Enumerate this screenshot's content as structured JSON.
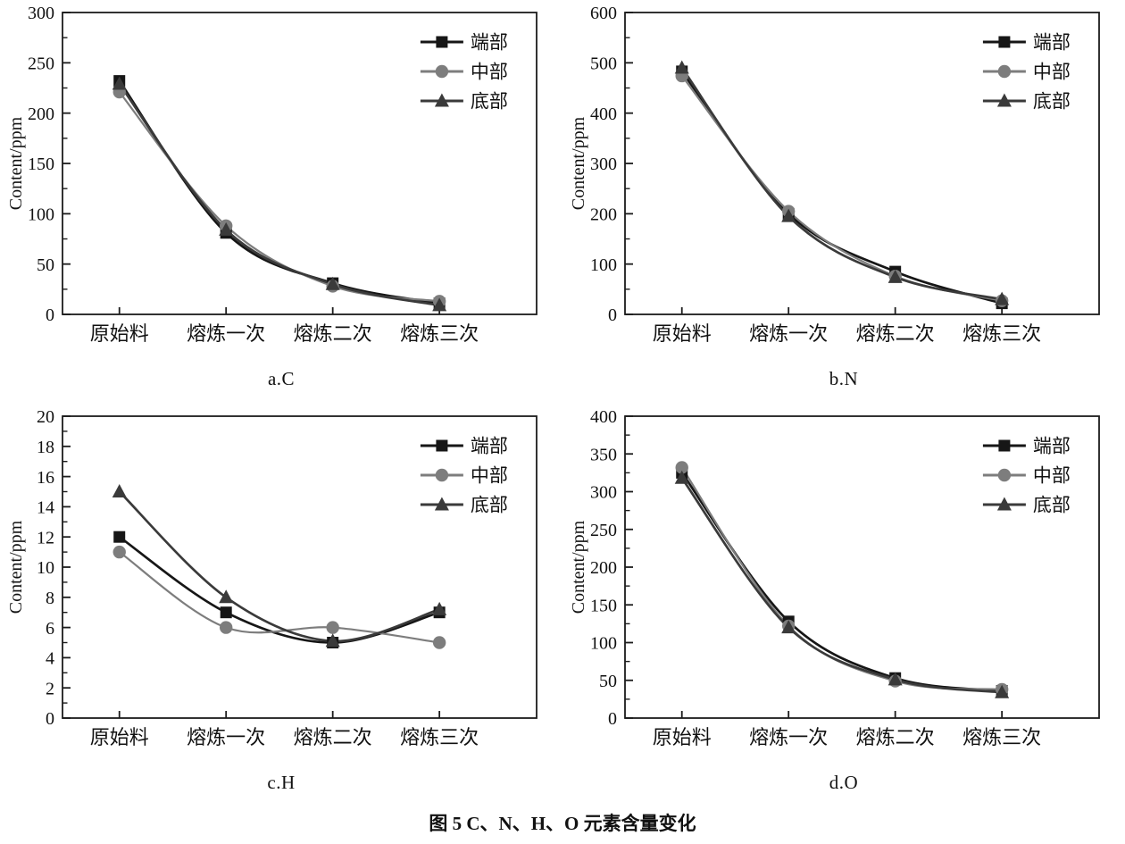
{
  "caption": "图 5  C、N、H、O 元素含量变化",
  "chart_data": [
    {
      "type": "line",
      "title": "a.C",
      "ylabel": "Content/ppm",
      "categories": [
        "原始料",
        "熔炼一次",
        "熔炼二次",
        "熔炼三次"
      ],
      "ylim": [
        0,
        300
      ],
      "ytick_step": 50,
      "grid": false,
      "legend_position": "top-right",
      "legend": [
        "端部",
        "中部",
        "底部"
      ],
      "series": [
        {
          "name": "端部",
          "marker": "square",
          "color": "#161616",
          "values": [
            232,
            81,
            31,
            11
          ]
        },
        {
          "name": "中部",
          "marker": "circle",
          "color": "#7d7d7d",
          "values": [
            221,
            88,
            28,
            13
          ]
        },
        {
          "name": "底部",
          "marker": "triangle",
          "color": "#3a3a3a",
          "values": [
            229,
            84,
            30,
            9
          ]
        }
      ]
    },
    {
      "type": "line",
      "title": "b.N",
      "ylabel": "Content/ppm",
      "categories": [
        "原始料",
        "熔炼一次",
        "熔炼二次",
        "熔炼三次"
      ],
      "ylim": [
        0,
        600
      ],
      "ytick_step": 100,
      "grid": false,
      "legend_position": "top-right",
      "legend": [
        "端部",
        "中部",
        "底部"
      ],
      "series": [
        {
          "name": "端部",
          "marker": "square",
          "color": "#161616",
          "values": [
            483,
            200,
            85,
            22
          ]
        },
        {
          "name": "中部",
          "marker": "circle",
          "color": "#7d7d7d",
          "values": [
            474,
            205,
            76,
            27
          ]
        },
        {
          "name": "底部",
          "marker": "triangle",
          "color": "#3a3a3a",
          "values": [
            490,
            195,
            74,
            30
          ]
        }
      ]
    },
    {
      "type": "line",
      "title": "c.H",
      "ylabel": "Content/ppm",
      "categories": [
        "原始料",
        "熔炼一次",
        "熔炼二次",
        "熔炼三次"
      ],
      "ylim": [
        0,
        20
      ],
      "ytick_step": 2,
      "grid": false,
      "legend_position": "top-right",
      "legend": [
        "端部",
        "中部",
        "底部"
      ],
      "series": [
        {
          "name": "端部",
          "marker": "square",
          "color": "#161616",
          "values": [
            12,
            7,
            5,
            7
          ]
        },
        {
          "name": "中部",
          "marker": "circle",
          "color": "#7d7d7d",
          "values": [
            11,
            6,
            6,
            5
          ]
        },
        {
          "name": "底部",
          "marker": "triangle",
          "color": "#3a3a3a",
          "values": [
            15,
            8,
            5.1,
            7.2
          ]
        }
      ]
    },
    {
      "type": "line",
      "title": "d.O",
      "ylabel": "Content/ppm",
      "categories": [
        "原始料",
        "熔炼一次",
        "熔炼二次",
        "熔炼三次"
      ],
      "ylim": [
        0,
        400
      ],
      "ytick_step": 50,
      "grid": false,
      "legend_position": "top-right",
      "legend": [
        "端部",
        "中部",
        "底部"
      ],
      "series": [
        {
          "name": "端部",
          "marker": "square",
          "color": "#161616",
          "values": [
            325,
            128,
            53,
            36
          ]
        },
        {
          "name": "中部",
          "marker": "circle",
          "color": "#7d7d7d",
          "values": [
            332,
            122,
            49,
            38
          ]
        },
        {
          "name": "底部",
          "marker": "triangle",
          "color": "#3a3a3a",
          "values": [
            318,
            120,
            51,
            34
          ]
        }
      ]
    }
  ]
}
